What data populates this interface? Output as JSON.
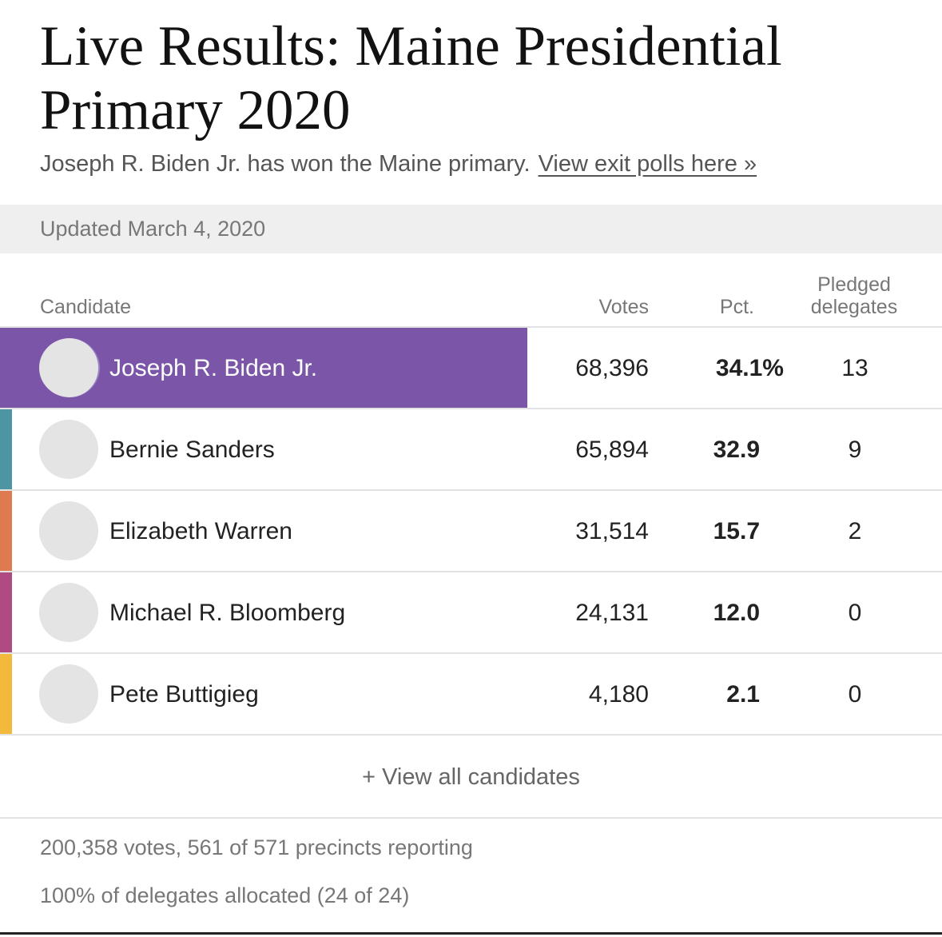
{
  "header": {
    "title": "Live Results: Maine Presidential Primary 2020",
    "subtitle": "Joseph R. Biden Jr. has won the Maine primary.",
    "exit_polls_link": "View exit polls here »"
  },
  "updated": "Updated March 4, 2020",
  "table": {
    "columns": {
      "candidate": "Candidate",
      "votes": "Votes",
      "pct": "Pct.",
      "pledged_line1": "Pledged",
      "pledged_line2": "delegates"
    },
    "rows": [
      {
        "name": "Joseph R. Biden Jr.",
        "votes": "68,396",
        "pct": "34.1%",
        "delegates": "13",
        "color": "#7b56a8",
        "pct_value": 34.1,
        "winner": true
      },
      {
        "name": "Bernie Sanders",
        "votes": "65,894",
        "pct": "32.9",
        "delegates": "9",
        "color": "#4e95a3",
        "pct_value": 32.9,
        "winner": false
      },
      {
        "name": "Elizabeth Warren",
        "votes": "31,514",
        "pct": "15.7",
        "delegates": "2",
        "color": "#de7a50",
        "pct_value": 15.7,
        "winner": false
      },
      {
        "name": "Michael R. Bloomberg",
        "votes": "24,131",
        "pct": "12.0",
        "delegates": "0",
        "color": "#b04a82",
        "pct_value": 12.0,
        "winner": false
      },
      {
        "name": "Pete Buttigieg",
        "votes": "4,180",
        "pct": "2.1",
        "delegates": "0",
        "color": "#f2b93c",
        "pct_value": 2.1,
        "winner": false
      }
    ]
  },
  "view_all": "+ View all candidates",
  "footer": {
    "votes_reporting": "200,358 votes, 561 of 571 precincts reporting",
    "delegates_allocated": "100% of delegates allocated (24 of 24)"
  }
}
